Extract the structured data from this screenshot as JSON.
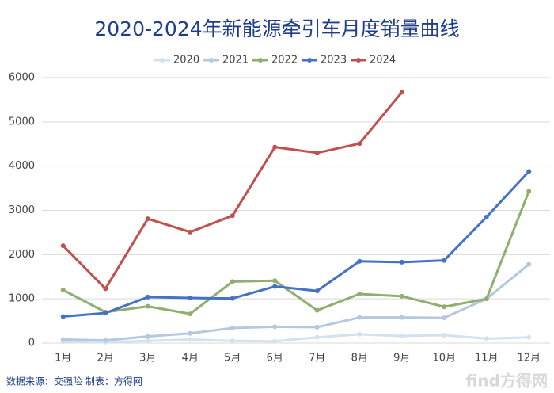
{
  "chart_data": {
    "type": "line",
    "title": "2020-2024年新能源牵引车月度销量曲线",
    "categories": [
      "1月",
      "2月",
      "3月",
      "4月",
      "5月",
      "6月",
      "7月",
      "8月",
      "9月",
      "10月",
      "11月",
      "12月"
    ],
    "series": [
      {
        "name": "2020",
        "color": "#d5e2ee",
        "values": [
          30,
          20,
          50,
          80,
          50,
          40,
          130,
          200,
          160,
          180,
          100,
          130
        ]
      },
      {
        "name": "2021",
        "color": "#b4c8de",
        "values": [
          80,
          60,
          150,
          220,
          340,
          370,
          360,
          580,
          580,
          570,
          1000,
          1780
        ]
      },
      {
        "name": "2022",
        "color": "#8fae6f",
        "values": [
          1200,
          700,
          830,
          660,
          1390,
          1410,
          740,
          1110,
          1060,
          820,
          1000,
          3430
        ]
      },
      {
        "name": "2023",
        "color": "#4472c4",
        "values": [
          600,
          680,
          1040,
          1020,
          1010,
          1280,
          1180,
          1850,
          1830,
          1870,
          2850,
          3880
        ]
      },
      {
        "name": "2024",
        "color": "#c0504d",
        "values": [
          2200,
          1230,
          2810,
          2510,
          2880,
          4430,
          4300,
          4510,
          5670,
          null,
          null,
          null
        ]
      }
    ],
    "ylim": [
      0,
      6000
    ],
    "yticks": [
      0,
      1000,
      2000,
      3000,
      4000,
      5000,
      6000
    ],
    "grid": true,
    "legend": "top",
    "footer": "数据来源：交强险   制表：方得网",
    "watermark": "find方得网"
  }
}
